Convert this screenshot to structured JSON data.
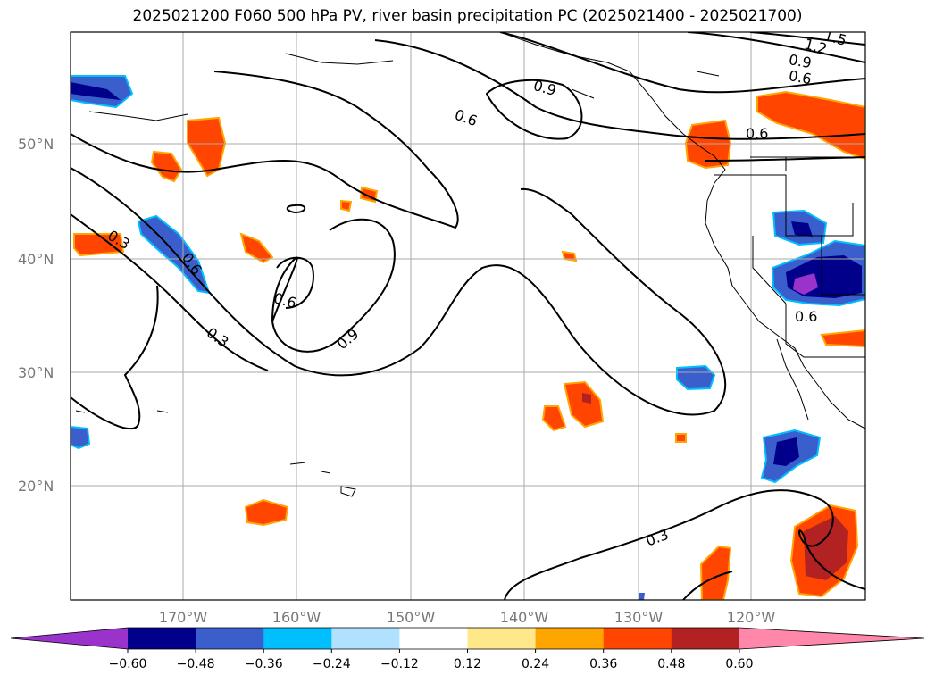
{
  "title": "2025021200 F060 500 hPa PV, river basin precipitation PC (2025021400 - 2025021700)",
  "map": {
    "lat_labels": [
      "50°N",
      "40°N",
      "30°N",
      "20°N"
    ],
    "lon_labels": [
      "170°W",
      "160°W",
      "150°W",
      "140°W",
      "130°W",
      "120°W"
    ],
    "contour_labels": [
      "0.3",
      "0.6",
      "0.3",
      "0.6",
      "0.9",
      "0.6",
      "0.9",
      "0.6",
      "0.9",
      "1.2",
      "1.5",
      "0.6",
      "0.6",
      "0.3"
    ]
  },
  "colorbar": {
    "tick_labels": [
      "−0.60",
      "−0.48",
      "−0.36",
      "−0.24",
      "−0.12",
      "0.12",
      "0.24",
      "0.36",
      "0.48",
      "0.60"
    ],
    "colors": [
      "#9933cc",
      "#00008b",
      "#3a5fcd",
      "#00bfff",
      "#b0e2ff",
      "#ffffff",
      "#ffe88a",
      "#ffa500",
      "#ff4500",
      "#b22222",
      "#ff88aa"
    ]
  },
  "colors": {
    "neg_strong": "#00008b",
    "neg_mid": "#3a5fcd",
    "neg_weak": "#00bfff",
    "pos_weak": "#ffa500",
    "pos_mid": "#ff4500",
    "pos_strong": "#b22222",
    "extreme_neg": "#9933cc"
  }
}
